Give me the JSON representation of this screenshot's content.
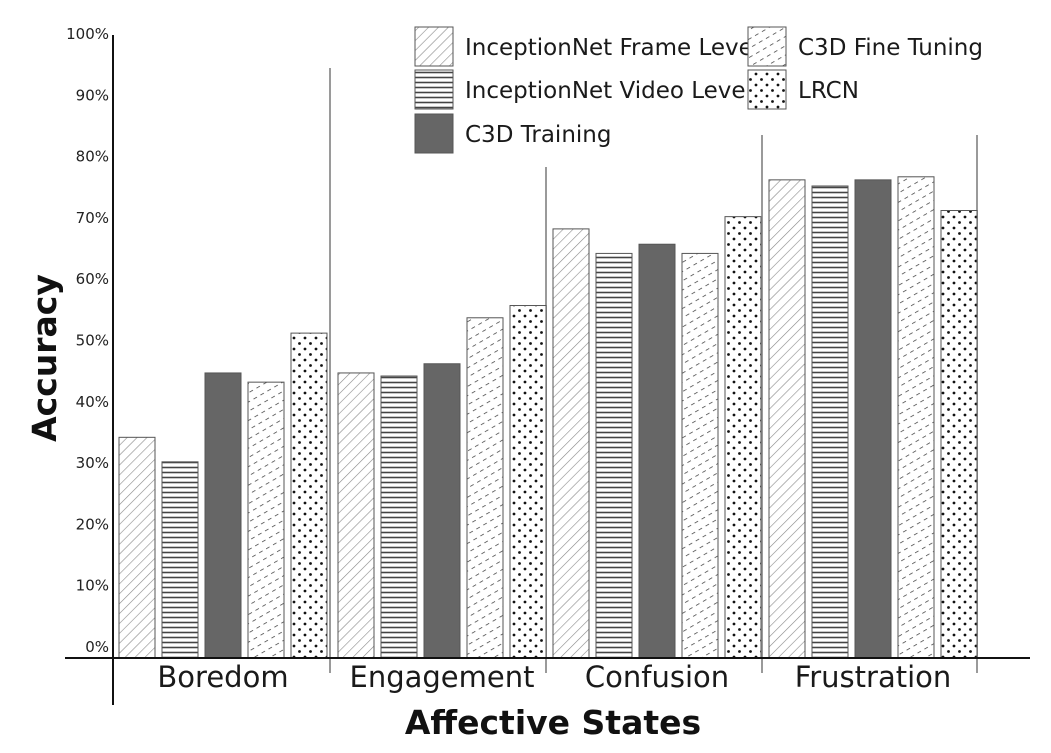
{
  "chart_data": {
    "type": "bar",
    "title": "",
    "xlabel": "Affective States",
    "ylabel": "Accuracy",
    "ylim": [
      0,
      100
    ],
    "y_ticks": [
      "0%",
      "10%",
      "20%",
      "30%",
      "40%",
      "50%",
      "60%",
      "70%",
      "80%",
      "90%",
      "100%"
    ],
    "categories": [
      "Boredom",
      "Engagement",
      "Confusion",
      "Frustration"
    ],
    "series": [
      {
        "name": "InceptionNet Frame Level",
        "pattern": "diagonal-hatch",
        "values": [
          36,
          46.5,
          70,
          78
        ]
      },
      {
        "name": "InceptionNet Video Level",
        "pattern": "horizontal-lines",
        "values": [
          32,
          46,
          66,
          77
        ]
      },
      {
        "name": "C3D Training",
        "pattern": "solid",
        "color": "#666666",
        "values": [
          46.5,
          48,
          67.5,
          78
        ]
      },
      {
        "name": "C3D Fine Tuning",
        "pattern": "dashed-diagonal",
        "values": [
          45,
          55.5,
          66,
          78.5
        ]
      },
      {
        "name": "LRCN",
        "pattern": "dots",
        "values": [
          53,
          57.5,
          72,
          73
        ]
      }
    ],
    "grid": false,
    "legend_position": "top-right"
  }
}
